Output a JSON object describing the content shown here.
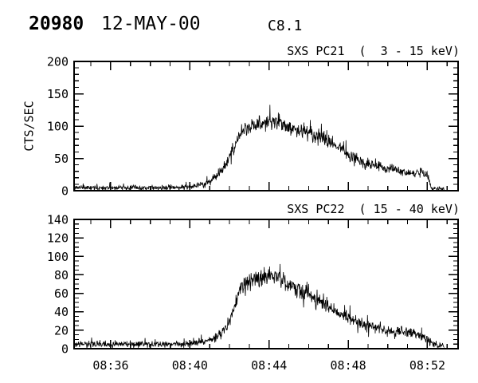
{
  "header": {
    "flare_number": "20980",
    "date": "12-MAY-00",
    "goes_class": "C8.1"
  },
  "xaxis": {
    "lim": [
      34.15,
      53.55
    ],
    "major_ticks": [
      {
        "t": 36,
        "label": "08:36"
      },
      {
        "t": 40,
        "label": "08:40"
      },
      {
        "t": 44,
        "label": "08:44"
      },
      {
        "t": 48,
        "label": "08:48"
      },
      {
        "t": 52,
        "label": "08:52"
      }
    ],
    "minor_step_min": 1
  },
  "chart_data": [
    {
      "type": "line",
      "title": "SXS PC21  (  3 - 15 keV)",
      "ylabel": "CTS/SEC",
      "ylim": [
        0,
        200
      ],
      "yticks": [
        0,
        50,
        100,
        150,
        200
      ],
      "yminor_step": 10,
      "data_t_range": [
        34.15,
        52.85
      ],
      "envelope": [
        [
          34.15,
          5
        ],
        [
          36.0,
          5
        ],
        [
          38.0,
          4.5
        ],
        [
          39.5,
          5
        ],
        [
          40.2,
          7
        ],
        [
          40.7,
          10
        ],
        [
          41.1,
          15
        ],
        [
          41.5,
          28
        ],
        [
          41.9,
          45
        ],
        [
          42.2,
          65
        ],
        [
          42.5,
          85
        ],
        [
          42.8,
          95
        ],
        [
          43.2,
          102
        ],
        [
          43.6,
          106
        ],
        [
          44.0,
          108
        ],
        [
          44.5,
          105
        ],
        [
          45.0,
          99
        ],
        [
          45.5,
          94
        ],
        [
          46.0,
          89
        ],
        [
          46.5,
          84
        ],
        [
          47.0,
          76
        ],
        [
          47.5,
          66
        ],
        [
          48.0,
          57
        ],
        [
          48.5,
          46
        ],
        [
          49.0,
          41
        ],
        [
          49.5,
          38
        ],
        [
          50.0,
          34
        ],
        [
          50.5,
          31
        ],
        [
          51.0,
          28
        ],
        [
          51.4,
          26
        ],
        [
          51.7,
          29
        ],
        [
          52.0,
          25
        ],
        [
          52.12,
          14
        ],
        [
          52.2,
          3
        ],
        [
          52.5,
          3
        ],
        [
          52.85,
          2
        ]
      ],
      "noise": {
        "base": 1.0,
        "sqrt_coef": 0.9,
        "amp": 0.62,
        "seed": 11
      }
    },
    {
      "type": "line",
      "title": "SXS PC22  ( 15 - 40 keV)",
      "ylabel": "",
      "ylim": [
        0,
        140
      ],
      "yticks": [
        0,
        20,
        40,
        60,
        80,
        100,
        120,
        140
      ],
      "yminor_step": 5,
      "data_t_range": [
        34.15,
        52.85
      ],
      "envelope": [
        [
          34.15,
          5
        ],
        [
          36.0,
          5
        ],
        [
          38.0,
          4.5
        ],
        [
          39.5,
          5
        ],
        [
          40.3,
          6
        ],
        [
          40.8,
          8
        ],
        [
          41.2,
          11
        ],
        [
          41.6,
          16
        ],
        [
          41.9,
          24
        ],
        [
          42.2,
          42
        ],
        [
          42.5,
          62
        ],
        [
          42.8,
          71
        ],
        [
          43.2,
          75
        ],
        [
          43.6,
          77
        ],
        [
          44.0,
          79
        ],
        [
          44.4,
          77
        ],
        [
          44.8,
          73
        ],
        [
          45.2,
          68
        ],
        [
          45.6,
          63
        ],
        [
          46.0,
          58
        ],
        [
          46.5,
          51
        ],
        [
          47.0,
          45
        ],
        [
          47.5,
          39
        ],
        [
          48.0,
          33
        ],
        [
          48.5,
          28
        ],
        [
          49.0,
          25
        ],
        [
          49.5,
          22
        ],
        [
          50.0,
          19
        ],
        [
          50.4,
          17
        ],
        [
          50.8,
          18
        ],
        [
          51.1,
          20
        ],
        [
          51.4,
          16
        ],
        [
          51.8,
          12
        ],
        [
          52.1,
          9
        ],
        [
          52.3,
          5
        ],
        [
          52.6,
          4
        ],
        [
          52.85,
          3
        ]
      ],
      "noise": {
        "base": 0.9,
        "sqrt_coef": 0.9,
        "amp": 0.62,
        "seed": 29
      }
    }
  ],
  "style": {
    "line_color": "#000000",
    "bg": "#ffffff"
  }
}
